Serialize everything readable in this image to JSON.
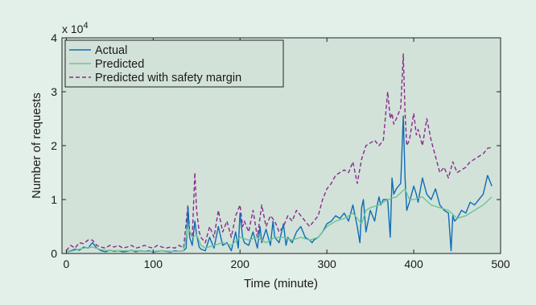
{
  "colors": {
    "page_background": "#e3efe9",
    "plot_background": "#d2e2d9",
    "actual": "#0f6cb5",
    "predicted": "#6ec495",
    "predicted_margin": "#8a2a8c"
  },
  "chart_data": {
    "type": "line",
    "title": "",
    "xlabel": "Time (minute)",
    "ylabel": "Number of requests",
    "y_exponent_label": "x 10^4",
    "y_exponent_base": "x 10",
    "y_exponent_power": "4",
    "xlim": [
      -5,
      500
    ],
    "ylim": [
      0,
      4
    ],
    "xticks": [
      "0",
      "100",
      "200",
      "300",
      "400",
      "500"
    ],
    "yticks": [
      "0",
      "1",
      "2",
      "3",
      "4"
    ],
    "grid": false,
    "legend_position": "top-left",
    "series": [
      {
        "name": "Actual",
        "style": "solid",
        "x": [
          0,
          5,
          10,
          15,
          20,
          25,
          30,
          35,
          40,
          45,
          50,
          55,
          60,
          65,
          70,
          75,
          80,
          85,
          90,
          95,
          100,
          105,
          110,
          115,
          120,
          125,
          130,
          135,
          138,
          140,
          142,
          145,
          148,
          150,
          153,
          155,
          160,
          165,
          170,
          175,
          180,
          185,
          190,
          195,
          198,
          200,
          203,
          205,
          210,
          215,
          220,
          223,
          225,
          230,
          235,
          238,
          240,
          245,
          250,
          253,
          255,
          260,
          265,
          270,
          275,
          280,
          283,
          285,
          290,
          295,
          300,
          305,
          310,
          315,
          320,
          325,
          330,
          335,
          338,
          340,
          342,
          345,
          350,
          355,
          358,
          360,
          362,
          365,
          370,
          373,
          375,
          377,
          380,
          385,
          388,
          390,
          392,
          395,
          400,
          403,
          405,
          410,
          415,
          420,
          425,
          430,
          435,
          440,
          443,
          445,
          447,
          450,
          455,
          460,
          465,
          470,
          475,
          480,
          485,
          490
        ],
        "y": [
          0.02,
          0.05,
          0.08,
          0.06,
          0.12,
          0.1,
          0.2,
          0.1,
          0.05,
          0.03,
          0.06,
          0.04,
          0.05,
          0.03,
          0.04,
          0.06,
          0.03,
          0.05,
          0.04,
          0.05,
          0.03,
          0.04,
          0.05,
          0.04,
          0.03,
          0.05,
          0.04,
          0.05,
          0.1,
          0.85,
          0.3,
          0.15,
          0.6,
          0.35,
          0.12,
          0.08,
          0.05,
          0.3,
          0.1,
          0.5,
          0.15,
          0.2,
          0.05,
          0.4,
          0.1,
          0.75,
          0.3,
          0.2,
          0.15,
          0.4,
          0.1,
          0.5,
          0.2,
          0.45,
          0.15,
          0.6,
          0.3,
          0.2,
          0.55,
          0.15,
          0.3,
          0.2,
          0.4,
          0.5,
          0.3,
          0.25,
          0.2,
          0.25,
          0.3,
          0.4,
          0.55,
          0.6,
          0.7,
          0.65,
          0.75,
          0.6,
          0.9,
          0.5,
          0.2,
          0.85,
          1.0,
          0.4,
          0.8,
          0.6,
          0.9,
          1.05,
          0.9,
          1.0,
          1.0,
          0.3,
          1.4,
          1.1,
          1.2,
          1.3,
          2.55,
          1.4,
          0.8,
          0.95,
          1.25,
          1.1,
          0.95,
          1.4,
          1.1,
          1.0,
          1.2,
          0.9,
          0.8,
          0.75,
          0.05,
          0.7,
          0.6,
          0.65,
          0.8,
          0.75,
          0.95,
          0.9,
          1.0,
          1.1,
          1.45,
          1.25
        ]
      },
      {
        "name": "Predicted",
        "style": "solid",
        "x": [
          0,
          10,
          20,
          30,
          40,
          50,
          60,
          70,
          80,
          90,
          100,
          110,
          120,
          130,
          135,
          140,
          145,
          150,
          155,
          160,
          170,
          180,
          190,
          200,
          210,
          220,
          230,
          240,
          250,
          260,
          270,
          280,
          290,
          300,
          310,
          320,
          330,
          340,
          345,
          350,
          360,
          370,
          380,
          390,
          395,
          400,
          410,
          420,
          430,
          440,
          450,
          460,
          470,
          480,
          490
        ],
        "y": [
          0.02,
          0.06,
          0.1,
          0.12,
          0.07,
          0.05,
          0.05,
          0.05,
          0.05,
          0.04,
          0.04,
          0.05,
          0.04,
          0.04,
          0.05,
          0.5,
          0.3,
          0.35,
          0.15,
          0.1,
          0.15,
          0.2,
          0.15,
          0.3,
          0.25,
          0.3,
          0.2,
          0.3,
          0.3,
          0.25,
          0.3,
          0.25,
          0.3,
          0.5,
          0.6,
          0.65,
          0.75,
          0.55,
          0.8,
          0.85,
          0.9,
          1.0,
          1.05,
          1.2,
          1.0,
          1.0,
          1.05,
          0.9,
          0.85,
          0.8,
          0.65,
          0.7,
          0.8,
          0.9,
          1.05
        ]
      },
      {
        "name": "Predicted with safety margin",
        "style": "dashed",
        "x": [
          0,
          5,
          10,
          15,
          20,
          25,
          30,
          35,
          40,
          45,
          50,
          55,
          60,
          65,
          70,
          75,
          80,
          85,
          90,
          95,
          100,
          105,
          110,
          115,
          120,
          125,
          130,
          135,
          140,
          142,
          145,
          148,
          150,
          153,
          155,
          160,
          165,
          170,
          175,
          180,
          185,
          190,
          195,
          200,
          203,
          205,
          210,
          215,
          220,
          225,
          230,
          235,
          240,
          245,
          250,
          255,
          260,
          265,
          270,
          275,
          280,
          285,
          290,
          295,
          300,
          305,
          310,
          315,
          320,
          325,
          330,
          335,
          340,
          345,
          350,
          355,
          360,
          365,
          370,
          373,
          375,
          377,
          380,
          385,
          388,
          390,
          392,
          395,
          400,
          403,
          405,
          410,
          415,
          420,
          425,
          430,
          435,
          440,
          445,
          450,
          455,
          460,
          465,
          470,
          475,
          480,
          485,
          490
        ],
        "y": [
          0.05,
          0.15,
          0.1,
          0.2,
          0.18,
          0.25,
          0.25,
          0.15,
          0.12,
          0.1,
          0.15,
          0.12,
          0.15,
          0.1,
          0.12,
          0.15,
          0.1,
          0.12,
          0.15,
          0.12,
          0.1,
          0.15,
          0.12,
          0.1,
          0.12,
          0.1,
          0.15,
          0.1,
          0.9,
          0.4,
          0.3,
          1.5,
          0.8,
          0.4,
          0.3,
          0.2,
          0.5,
          0.3,
          0.8,
          0.4,
          0.6,
          0.3,
          0.7,
          0.9,
          0.5,
          0.6,
          0.4,
          0.8,
          0.3,
          0.9,
          0.5,
          0.7,
          0.6,
          0.4,
          0.5,
          0.7,
          0.6,
          0.8,
          0.7,
          0.6,
          0.5,
          0.6,
          0.7,
          1.0,
          1.2,
          1.3,
          1.45,
          1.5,
          1.55,
          1.5,
          1.7,
          1.3,
          1.75,
          2.0,
          2.05,
          2.1,
          2.0,
          2.1,
          3.0,
          2.5,
          2.6,
          2.4,
          2.5,
          2.7,
          3.7,
          2.6,
          2.0,
          2.1,
          2.6,
          2.2,
          2.3,
          2.0,
          2.5,
          2.1,
          1.8,
          1.5,
          1.6,
          1.4,
          1.7,
          1.5,
          1.55,
          1.6,
          1.7,
          1.75,
          1.8,
          1.85,
          1.95,
          1.97
        ]
      }
    ]
  }
}
